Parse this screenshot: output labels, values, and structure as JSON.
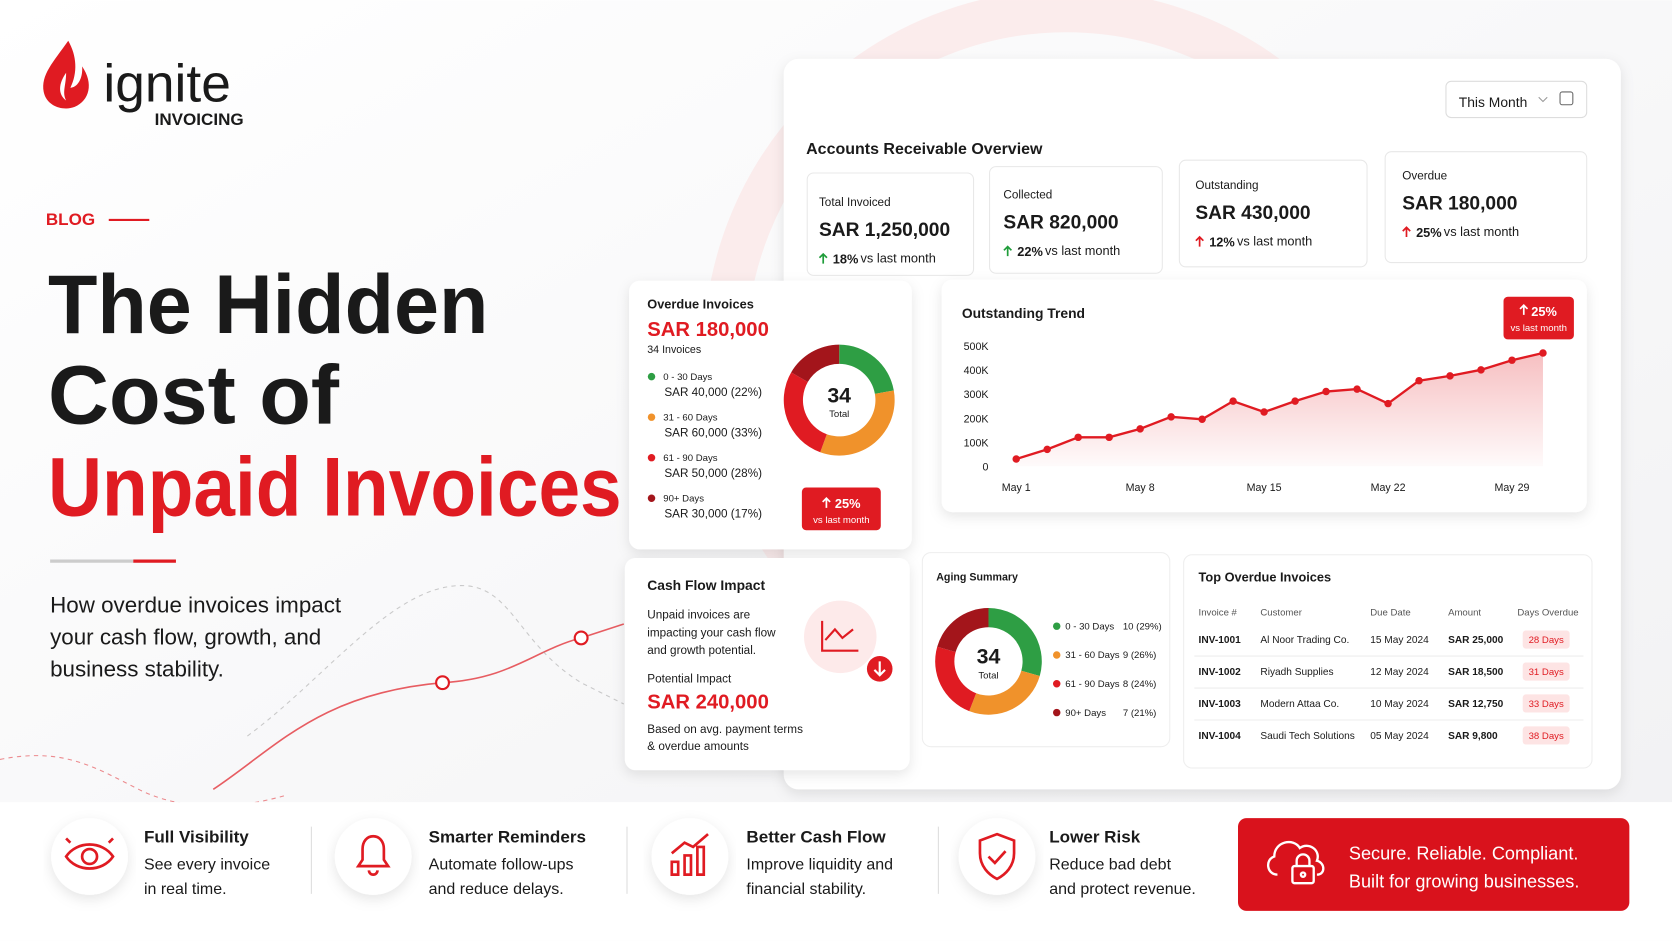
{
  "brand": {
    "name": "ignite",
    "tagline": "INVOICING"
  },
  "hero": {
    "tag": "BLOG",
    "title_lines": [
      "The Hidden",
      "Cost of"
    ],
    "title_highlight": "Unpaid Invoices",
    "subtitle_lines": [
      "How overdue invoices impact",
      "your cash flow, growth, and",
      "business stability."
    ]
  },
  "overview": {
    "title": "Accounts Receivable Overview",
    "period": "This Month",
    "kpis": [
      {
        "label": "Total Invoiced",
        "value": "SAR 1,250,000",
        "change": "18%",
        "note": "vs last month",
        "value_color": "#1a1a1a",
        "change_color": "#1f9d3a"
      },
      {
        "label": "Collected",
        "value": "SAR 820,000",
        "change": "22%",
        "note": "vs last month",
        "value_color": "#1a1a1a",
        "change_color": "#1f9d3a"
      },
      {
        "label": "Outstanding",
        "value": "SAR 430,000",
        "change": "12%",
        "note": "vs last month",
        "value_color": "#e01b22",
        "change_color": "#e01b22"
      },
      {
        "label": "Overdue",
        "value": "SAR 180,000",
        "change": "25%",
        "note": "vs last month",
        "value_color": "#e01b22",
        "change_color": "#e01b22"
      }
    ]
  },
  "overdue_card": {
    "title": "Overdue Invoices",
    "amount": "SAR 180,000",
    "count_label": "34 Invoices",
    "badge": {
      "change": "25%",
      "note": "vs last month"
    }
  },
  "cash_flow": {
    "title": "Cash Flow Impact",
    "description_lines": [
      "Unpaid invoices are",
      "impacting your cash flow",
      "and growth potential."
    ],
    "impact_label": "Potential Impact",
    "impact_value": "SAR 240,000",
    "note_lines": [
      "Based on avg. payment terms",
      "& overdue amounts"
    ]
  },
  "top_overdue": {
    "title": "Top Overdue Invoices",
    "columns": [
      "Invoice #",
      "Customer",
      "Due Date",
      "Amount",
      "Days Overdue"
    ],
    "rows": [
      [
        "INV-1001",
        "Al Noor Trading Co.",
        "15 May 2024",
        "SAR 25,000",
        "28 Days"
      ],
      [
        "INV-1002",
        "Riyadh Supplies",
        "12 May 2024",
        "SAR 18,500",
        "31 Days"
      ],
      [
        "INV-1003",
        "Modern Attaa Co.",
        "10 May 2024",
        "SAR 12,750",
        "33 Days"
      ],
      [
        "INV-1004",
        "Saudi Tech Solutions",
        "05 May 2024",
        "SAR 9,800",
        "38 Days"
      ]
    ]
  },
  "features": [
    {
      "title": "Full Visibility",
      "lines": [
        "See every invoice",
        "in real time."
      ]
    },
    {
      "title": "Smarter Reminders",
      "lines": [
        "Automate follow-ups",
        "and reduce delays."
      ]
    },
    {
      "title": "Better Cash Flow",
      "lines": [
        "Improve liquidity and",
        "financial stability."
      ]
    },
    {
      "title": "Lower Risk",
      "lines": [
        "Reduce bad debt",
        "and protect revenue."
      ]
    }
  ],
  "cta": {
    "lines": [
      "Secure. Reliable. Compliant.",
      "Built for growing businesses."
    ]
  },
  "chart_data": [
    {
      "type": "donut",
      "categories": [
        "0 - 30 Days",
        "31 - 60 Days",
        "61 - 90 Days",
        "90+ Days"
      ],
      "values": [
        40000,
        60000,
        50000,
        30000
      ],
      "value_labels": [
        "SAR 40,000 (22%)",
        "SAR 60,000 (33%)",
        "SAR 50,000 (28%)",
        "SAR 30,000 (17%)"
      ],
      "colors": [
        "#2e9e44",
        "#f0922b",
        "#e01b22",
        "#a3151b"
      ],
      "center_text": "34",
      "center_label": "Total"
    },
    {
      "type": "line",
      "title": "Outstanding Trend",
      "categories": [
        "May 1",
        null,
        null,
        null,
        "May 8",
        null,
        null,
        null,
        "May 15",
        null,
        null,
        null,
        "May 22",
        null,
        null,
        null,
        "May 29",
        null
      ],
      "values": [
        30000,
        70000,
        120000,
        120000,
        155000,
        205000,
        195000,
        270000,
        225000,
        270000,
        310000,
        320000,
        260000,
        355000,
        375000,
        400000,
        440000,
        470000
      ],
      "color": "#e01b22",
      "ylim": [
        0,
        500000
      ],
      "yticks": [
        0,
        {
          "value": 100000,
          "label": "100K"
        },
        {
          "value": 200000,
          "label": "200K"
        },
        {
          "value": 300000,
          "label": "300K"
        },
        {
          "value": 400000,
          "label": "400K"
        },
        {
          "value": 500000,
          "label": "500K"
        }
      ],
      "badge": {
        "change": "25%",
        "note": "vs last month"
      }
    },
    {
      "type": "donut",
      "title": "Aging Summary",
      "categories": [
        "0 - 30 Days",
        "31 - 60 Days",
        "61 - 90 Days",
        "90+ Days"
      ],
      "values": [
        10,
        9,
        8,
        7
      ],
      "value_labels": [
        "10 (29%)",
        "9 (26%)",
        "8 (24%)",
        "7 (21%)"
      ],
      "colors": [
        "#2e9e44",
        "#f0922b",
        "#e01b22",
        "#a3151b"
      ],
      "center_text": "34",
      "center_label": "Total"
    }
  ]
}
